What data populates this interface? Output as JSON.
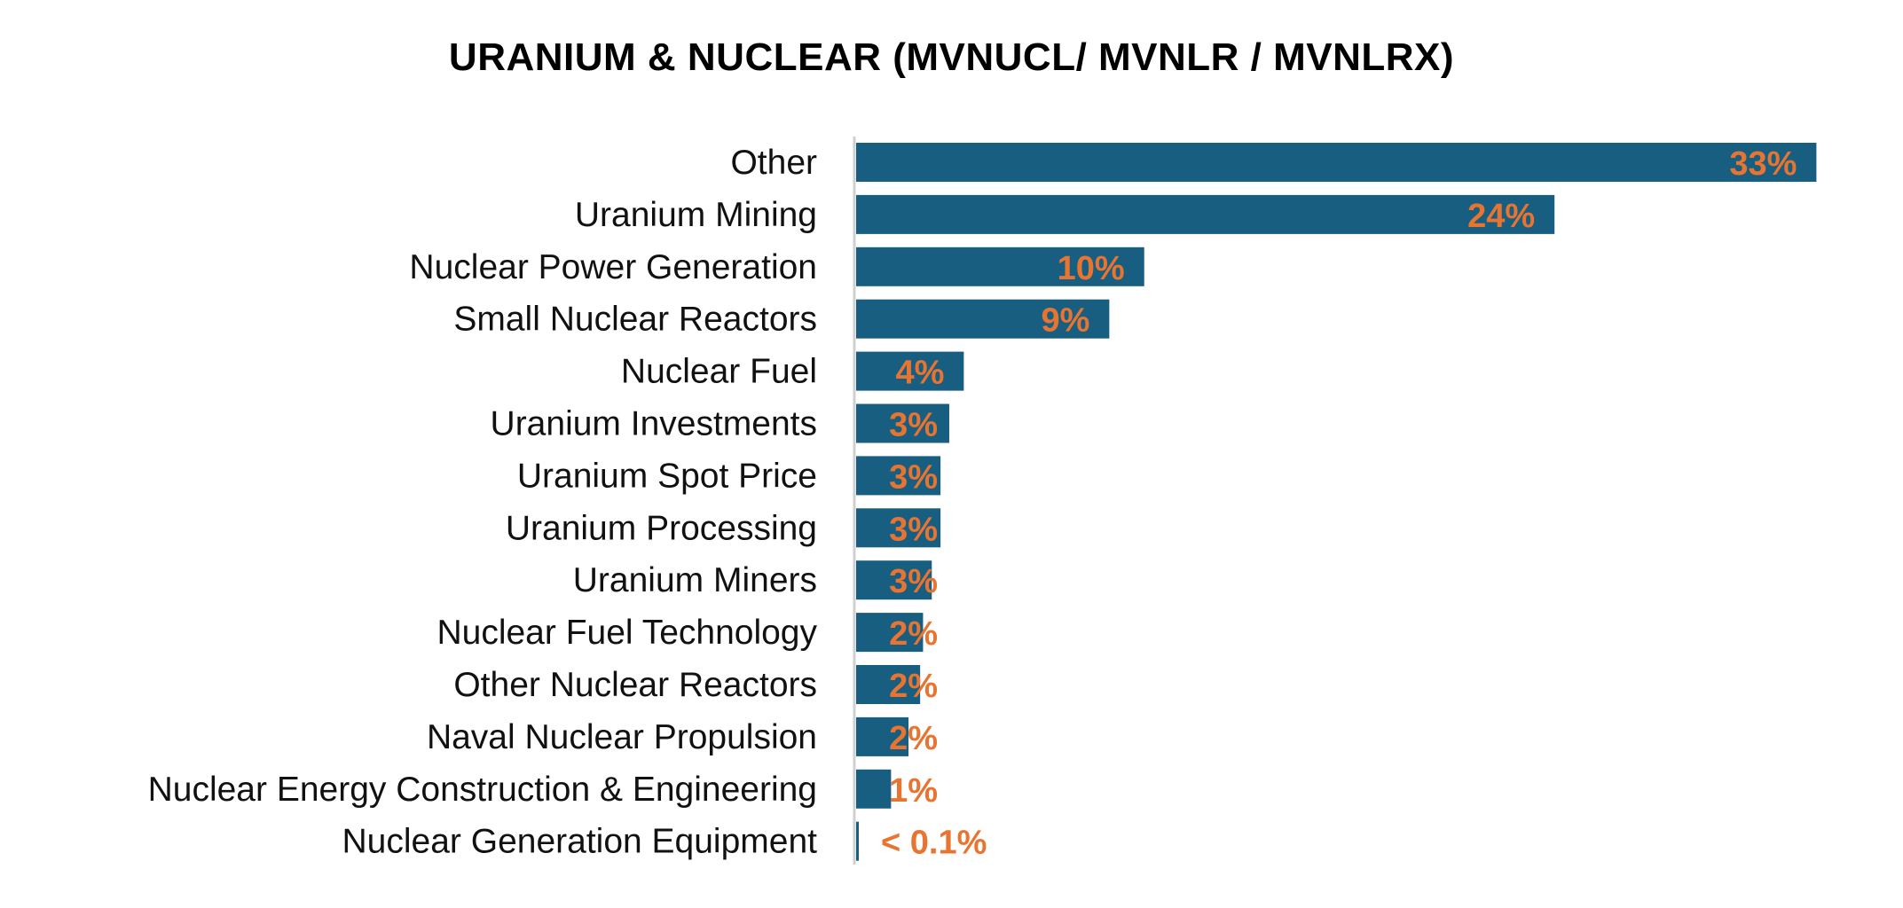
{
  "chart_data": {
    "type": "bar",
    "orientation": "horizontal",
    "title": "URANIUM & NUCLEAR (MVNUCL/ MVNLR / MVNLRX)",
    "categories": [
      "Other",
      "Uranium Mining",
      "Nuclear Power Generation",
      "Small Nuclear Reactors",
      "Nuclear Fuel",
      "Uranium Investments",
      "Uranium Spot Price",
      "Uranium Processing",
      "Uranium Miners",
      "Nuclear Fuel Technology",
      "Other Nuclear Reactors",
      "Naval Nuclear Propulsion",
      "Nuclear Energy Construction & Engineering",
      "Nuclear Generation Equipment"
    ],
    "values": [
      33,
      24,
      9.9,
      8.7,
      3.7,
      3.2,
      2.9,
      2.9,
      2.6,
      2.3,
      2.2,
      1.8,
      1.2,
      0.05
    ],
    "data_labels": [
      "33%",
      "24%",
      "10%",
      "9%",
      "4%",
      "3%",
      "3%",
      "3%",
      "3%",
      "2%",
      "2%",
      "2%",
      "1%",
      "< 0.1%"
    ],
    "xlabel": "",
    "ylabel": "",
    "xlim": [
      0,
      33
    ],
    "grid": false,
    "legend": "none",
    "colors": {
      "bar": "#175E80",
      "label": "#E87431",
      "axis": "#D0D0D0"
    }
  }
}
